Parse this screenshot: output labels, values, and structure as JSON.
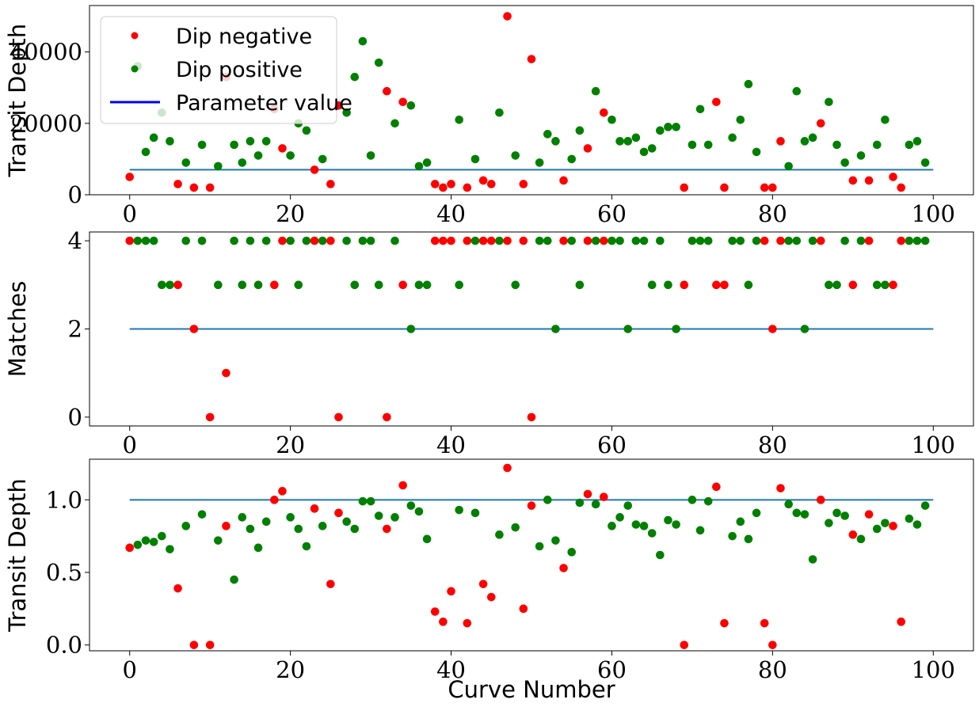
{
  "colors": {
    "dip_negative": "#ff0000",
    "dip_positive": "#008000",
    "parameter_line": "#1f77b4",
    "legend_line": "#0000ff"
  },
  "legend": {
    "placement": "top-left",
    "entries": [
      "Dip negative",
      "Dip positive",
      "Parameter value"
    ]
  },
  "chart_data": [
    {
      "type": "scatter",
      "ylabel": "Transit Depth",
      "xlabel": "",
      "xlim": [
        -5,
        105
      ],
      "ylim": [
        0,
        53000
      ],
      "xticks": [
        0,
        20,
        40,
        60,
        80,
        100
      ],
      "yticks": [
        0,
        20000,
        40000
      ],
      "grid": false,
      "parameter_value": 7000,
      "values": [
        5000,
        36000,
        12000,
        16000,
        23000,
        15000,
        3000,
        9000,
        2000,
        14000,
        2000,
        8000,
        33000,
        14000,
        9000,
        15000,
        11000,
        15000,
        24000,
        13000,
        11000,
        20000,
        18000,
        7000,
        10000,
        3000,
        25000,
        23000,
        33000,
        43000,
        11000,
        37000,
        29000,
        20000,
        26000,
        25000,
        8000,
        9000,
        3000,
        2000,
        3000,
        21000,
        2000,
        10000,
        4000,
        3000,
        23000,
        50000,
        11000,
        3000,
        38000,
        9000,
        17000,
        15000,
        4000,
        10000,
        18000,
        13000,
        29000,
        23000,
        21000,
        15000,
        15000,
        16000,
        12000,
        13000,
        18000,
        19000,
        19000,
        2000,
        14000,
        24000,
        14000,
        26000,
        2000,
        16000,
        21000,
        31000,
        12000,
        2000,
        2000,
        15000,
        8000,
        29000,
        15000,
        16000,
        20000,
        26000,
        14000,
        9000,
        4000,
        11000,
        4000,
        14000,
        21000,
        5000,
        2000,
        14000,
        15000,
        9000
      ],
      "dip": [
        "N",
        "P",
        "P",
        "P",
        "P",
        "P",
        "N",
        "P",
        "N",
        "P",
        "N",
        "P",
        "N",
        "P",
        "P",
        "P",
        "P",
        "P",
        "N",
        "N",
        "P",
        "P",
        "P",
        "N",
        "P",
        "N",
        "N",
        "P",
        "P",
        "P",
        "P",
        "P",
        "N",
        "P",
        "N",
        "P",
        "P",
        "P",
        "N",
        "N",
        "N",
        "P",
        "N",
        "P",
        "N",
        "N",
        "P",
        "N",
        "P",
        "N",
        "N",
        "P",
        "P",
        "P",
        "N",
        "P",
        "P",
        "N",
        "P",
        "N",
        "P",
        "P",
        "P",
        "P",
        "P",
        "P",
        "P",
        "P",
        "P",
        "N",
        "P",
        "P",
        "P",
        "N",
        "N",
        "P",
        "P",
        "P",
        "P",
        "N",
        "N",
        "N",
        "P",
        "P",
        "P",
        "P",
        "N",
        "P",
        "P",
        "P",
        "N",
        "P",
        "N",
        "P",
        "P",
        "N",
        "N",
        "P",
        "P",
        "P"
      ]
    },
    {
      "type": "scatter",
      "ylabel": "Matches",
      "xlabel": "",
      "xlim": [
        -5,
        105
      ],
      "ylim": [
        -0.2,
        4.2
      ],
      "xticks": [
        0,
        20,
        40,
        60,
        80,
        100
      ],
      "yticks": [
        0,
        2,
        4
      ],
      "grid": false,
      "parameter_value": 2,
      "values": [
        4,
        4,
        4,
        4,
        3,
        3,
        3,
        4,
        2,
        4,
        0,
        3,
        1,
        4,
        3,
        4,
        3,
        4,
        3,
        4,
        4,
        3,
        4,
        4,
        4,
        4,
        0,
        4,
        3,
        4,
        4,
        3,
        0,
        4,
        3,
        2,
        3,
        3,
        4,
        4,
        4,
        3,
        4,
        4,
        4,
        4,
        4,
        4,
        3,
        4,
        0,
        4,
        4,
        2,
        4,
        4,
        3,
        4,
        4,
        4,
        4,
        4,
        2,
        4,
        4,
        3,
        4,
        3,
        2,
        3,
        4,
        4,
        4,
        3,
        3,
        4,
        4,
        3,
        4,
        4,
        2,
        4,
        4,
        4,
        2,
        4,
        4,
        3,
        3,
        4,
        3,
        4,
        4,
        3,
        3,
        3,
        4,
        4,
        4,
        4
      ],
      "dip": [
        "N",
        "P",
        "P",
        "P",
        "P",
        "P",
        "N",
        "P",
        "N",
        "P",
        "N",
        "P",
        "N",
        "P",
        "P",
        "P",
        "P",
        "P",
        "N",
        "N",
        "P",
        "P",
        "P",
        "N",
        "P",
        "N",
        "N",
        "P",
        "P",
        "P",
        "P",
        "P",
        "N",
        "P",
        "N",
        "P",
        "P",
        "P",
        "N",
        "N",
        "N",
        "P",
        "N",
        "P",
        "N",
        "N",
        "P",
        "N",
        "P",
        "N",
        "N",
        "P",
        "P",
        "P",
        "N",
        "P",
        "P",
        "N",
        "P",
        "N",
        "P",
        "P",
        "P",
        "P",
        "P",
        "P",
        "P",
        "P",
        "P",
        "N",
        "P",
        "P",
        "P",
        "N",
        "N",
        "P",
        "P",
        "P",
        "P",
        "N",
        "N",
        "N",
        "P",
        "P",
        "P",
        "P",
        "N",
        "P",
        "P",
        "P",
        "N",
        "P",
        "N",
        "P",
        "P",
        "N",
        "N",
        "P",
        "P",
        "P"
      ]
    },
    {
      "type": "scatter",
      "ylabel": "Transit Depth",
      "xlabel": "Curve Number",
      "xlim": [
        -5,
        105
      ],
      "ylim": [
        -0.04,
        1.28
      ],
      "xticks": [
        0,
        20,
        40,
        60,
        80,
        100
      ],
      "yticks": [
        0.0,
        0.5,
        1.0
      ],
      "ytick_labels": [
        "0.0",
        "0.5",
        "1.0"
      ],
      "grid": false,
      "parameter_value": 1.0,
      "values": [
        0.67,
        0.69,
        0.72,
        0.71,
        0.75,
        0.66,
        0.39,
        0.82,
        0.0,
        0.9,
        0.0,
        0.72,
        0.82,
        0.45,
        0.88,
        0.8,
        0.67,
        0.85,
        1.0,
        1.06,
        0.88,
        0.8,
        0.68,
        0.94,
        0.82,
        0.42,
        0.91,
        0.85,
        0.8,
        0.99,
        0.99,
        0.89,
        0.8,
        0.88,
        1.1,
        0.96,
        0.92,
        0.73,
        0.23,
        0.16,
        0.37,
        0.93,
        0.15,
        0.91,
        0.42,
        0.33,
        0.76,
        1.22,
        0.81,
        0.25,
        0.96,
        0.68,
        1.0,
        0.72,
        0.53,
        0.64,
        0.98,
        1.04,
        0.97,
        1.02,
        0.82,
        0.88,
        0.96,
        0.83,
        0.82,
        0.77,
        0.62,
        0.86,
        0.83,
        0.0,
        1.0,
        0.79,
        0.99,
        1.09,
        0.15,
        0.75,
        0.85,
        0.73,
        0.91,
        0.15,
        0.0,
        1.08,
        0.97,
        0.91,
        0.9,
        0.59,
        1.0,
        0.84,
        0.91,
        0.89,
        0.76,
        0.73,
        0.9,
        0.8,
        0.84,
        0.82,
        0.16,
        0.87,
        0.83,
        0.96
      ],
      "dip": [
        "N",
        "P",
        "P",
        "P",
        "P",
        "P",
        "N",
        "P",
        "N",
        "P",
        "N",
        "P",
        "N",
        "P",
        "P",
        "P",
        "P",
        "P",
        "N",
        "N",
        "P",
        "P",
        "P",
        "N",
        "P",
        "N",
        "N",
        "P",
        "P",
        "P",
        "P",
        "P",
        "N",
        "P",
        "N",
        "P",
        "P",
        "P",
        "N",
        "N",
        "N",
        "P",
        "N",
        "P",
        "N",
        "N",
        "P",
        "N",
        "P",
        "N",
        "N",
        "P",
        "P",
        "P",
        "N",
        "P",
        "P",
        "N",
        "P",
        "N",
        "P",
        "P",
        "P",
        "P",
        "P",
        "P",
        "P",
        "P",
        "P",
        "N",
        "P",
        "P",
        "P",
        "N",
        "N",
        "P",
        "P",
        "P",
        "P",
        "N",
        "N",
        "N",
        "P",
        "P",
        "P",
        "P",
        "N",
        "P",
        "P",
        "P",
        "N",
        "P",
        "N",
        "P",
        "P",
        "N",
        "N",
        "P",
        "P",
        "P"
      ]
    }
  ]
}
